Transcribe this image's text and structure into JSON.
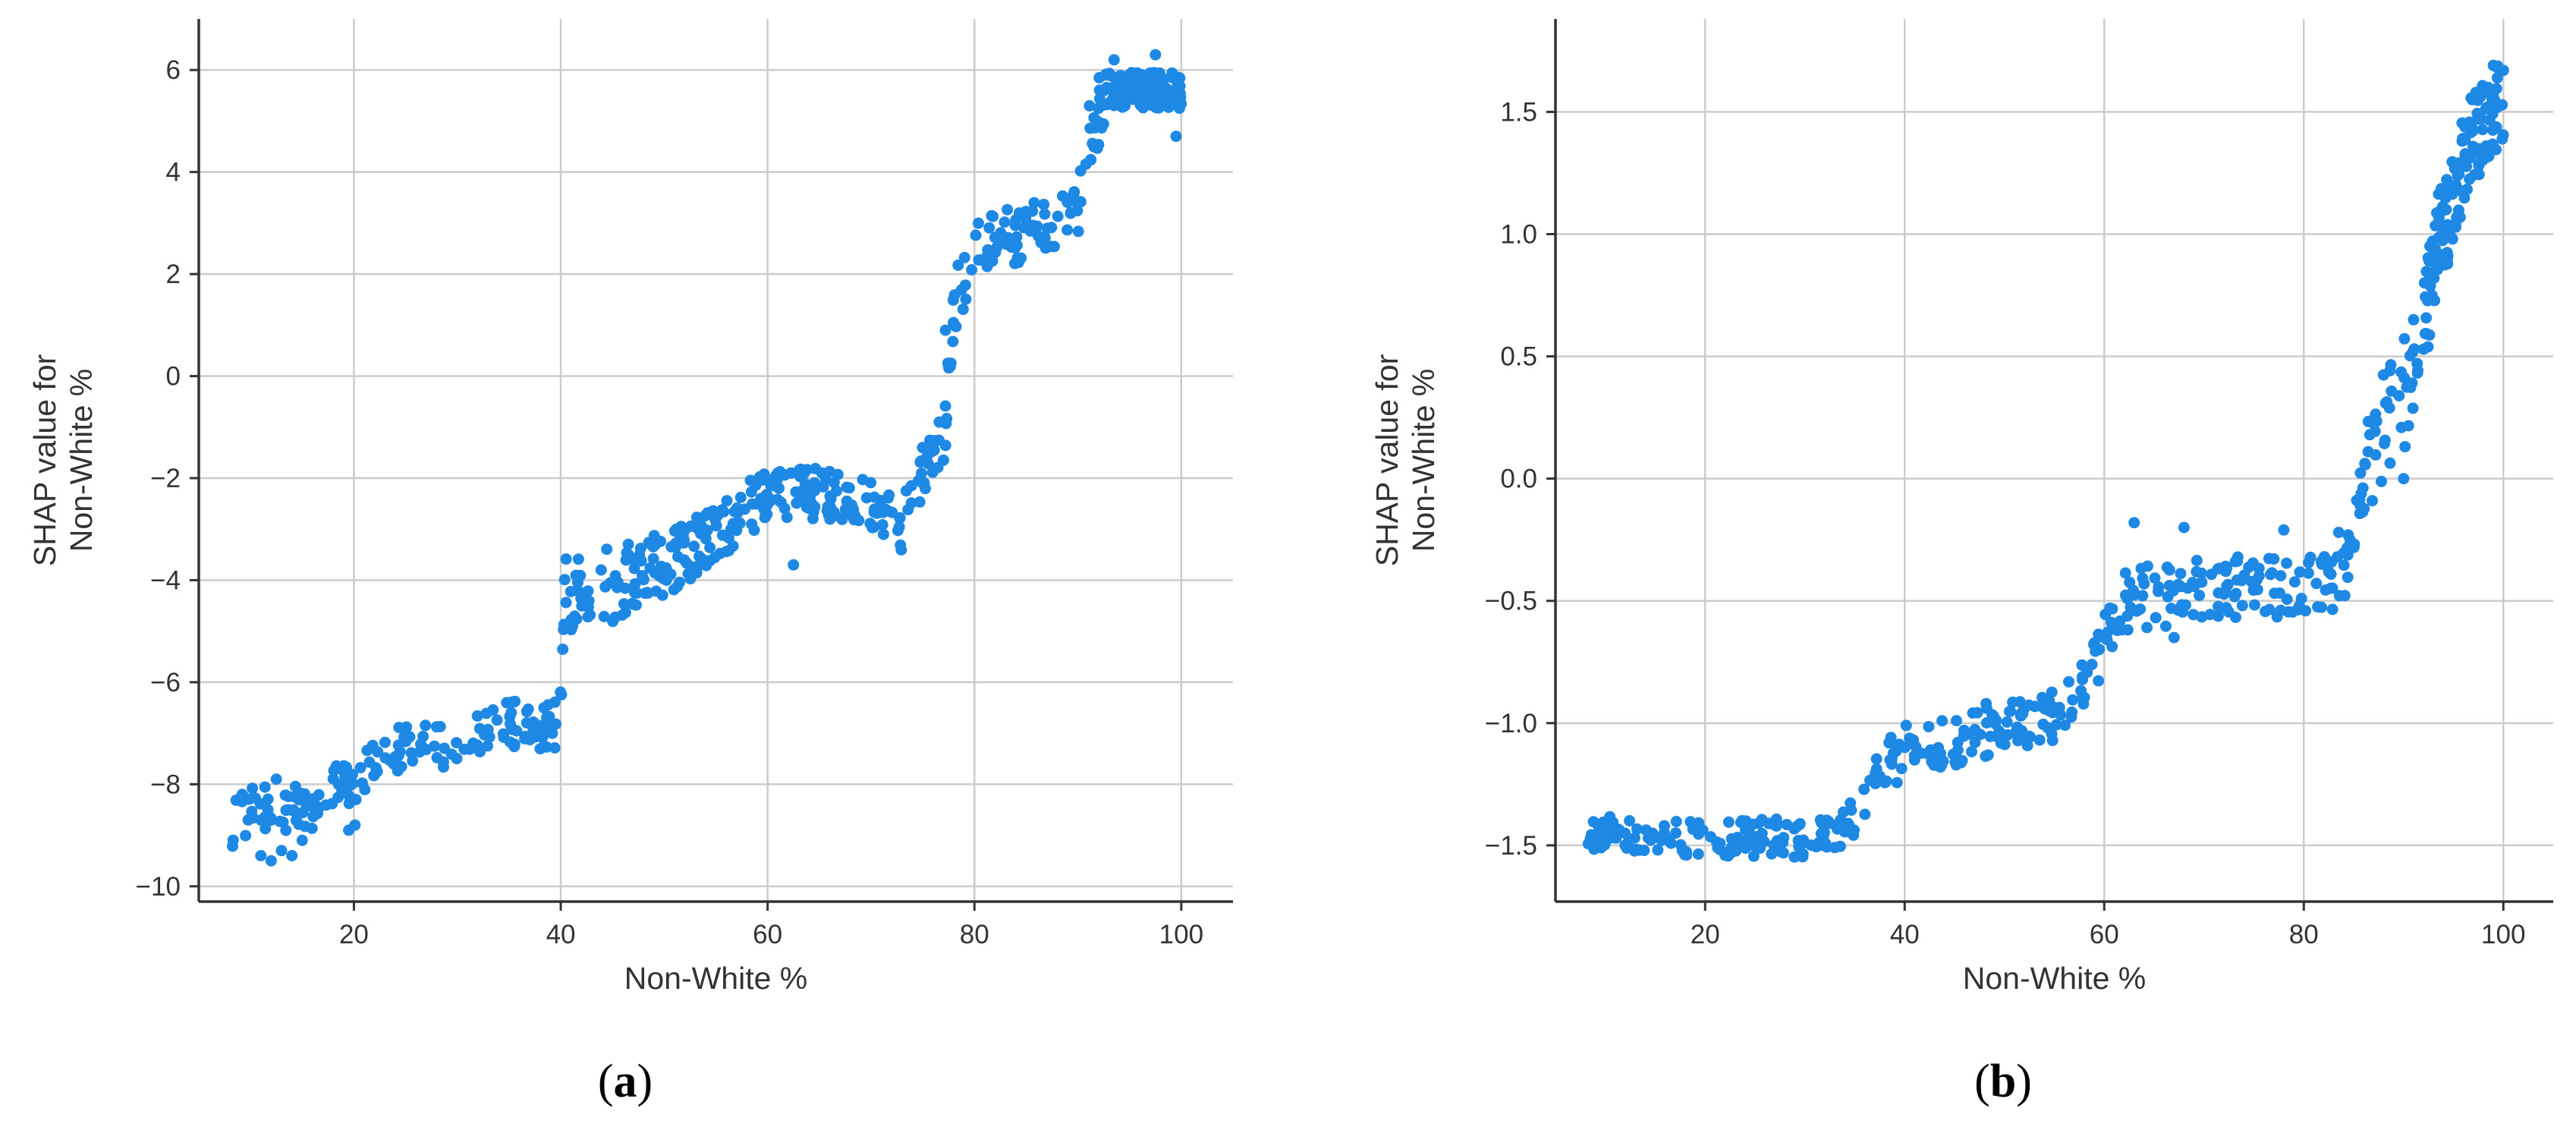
{
  "colors": {
    "points": "#1E88E5",
    "grid": "#CCCCCC",
    "axis": "#333333",
    "text": "#333333"
  },
  "chart_data": [
    {
      "type": "scatter",
      "panel_label": {
        "open": "(",
        "letter": "a",
        "close": ")"
      },
      "xlabel": "Non-White %",
      "ylabel": [
        "SHAP value for",
        "Non-White %"
      ],
      "xlim": [
        5,
        105
      ],
      "ylim": [
        -10.3,
        7.0
      ],
      "xticks": [
        20,
        40,
        60,
        80,
        100
      ],
      "xtick_labels": [
        "20",
        "40",
        "60",
        "80",
        "100"
      ],
      "yticks": [
        6,
        4,
        2,
        0,
        -2,
        -4,
        -6,
        -8,
        -10
      ],
      "ytick_labels": [
        "6",
        "4",
        "2",
        "0",
        "−2",
        "−4",
        "−6",
        "−8",
        "−10"
      ],
      "grid": true,
      "trend": [
        [
          7.0,
          -9.0
        ],
        [
          10.0,
          -8.4
        ],
        [
          15.0,
          -8.5
        ],
        [
          20.0,
          -7.9
        ],
        [
          25.0,
          -7.2
        ],
        [
          30.0,
          -7.3
        ],
        [
          35.0,
          -6.8
        ],
        [
          39.5,
          -6.9
        ],
        [
          40.0,
          -6.0
        ],
        [
          40.5,
          -4.2
        ],
        [
          45.0,
          -4.1
        ],
        [
          50.0,
          -3.7
        ],
        [
          55.0,
          -3.1
        ],
        [
          60.0,
          -2.3
        ],
        [
          65.0,
          -2.3
        ],
        [
          70.0,
          -2.5
        ],
        [
          73.0,
          -3.0
        ],
        [
          74.0,
          -2.2
        ],
        [
          77.0,
          -1.3
        ],
        [
          78.0,
          1.4
        ],
        [
          80.0,
          2.6
        ],
        [
          85.0,
          2.8
        ],
        [
          90.0,
          3.2
        ],
        [
          91.0,
          4.7
        ],
        [
          93.0,
          5.6
        ],
        [
          100.0,
          5.6
        ]
      ],
      "spread": [
        [
          7.0,
          0.55
        ],
        [
          20.0,
          0.45
        ],
        [
          39.0,
          0.45
        ],
        [
          40.5,
          0.8
        ],
        [
          55.0,
          0.55
        ],
        [
          73.0,
          0.45
        ],
        [
          78.0,
          0.7
        ],
        [
          90.0,
          0.45
        ],
        [
          92.0,
          0.7
        ],
        [
          93.0,
          0.35
        ],
        [
          100.0,
          0.35
        ]
      ],
      "points": [
        [
          9.2,
          -8.2
        ],
        [
          11.0,
          -9.4
        ],
        [
          12.0,
          -9.5
        ],
        [
          12.5,
          -7.9
        ],
        [
          13.0,
          -9.3
        ],
        [
          14.0,
          -9.4
        ],
        [
          15.0,
          -9.1
        ],
        [
          19.5,
          -8.9
        ],
        [
          20.1,
          -8.8
        ],
        [
          76.6,
          -0.9
        ],
        [
          77.2,
          0.9
        ],
        [
          93.5,
          6.2
        ],
        [
          97.5,
          6.3
        ],
        [
          99.5,
          4.7
        ],
        [
          62.5,
          -3.7
        ]
      ],
      "n_points": 720,
      "seed": 11
    },
    {
      "type": "scatter",
      "panel_label": {
        "open": "(",
        "letter": "b",
        "close": ")"
      },
      "xlabel": "Non-White %",
      "ylabel": [
        "SHAP value for",
        "Non-White %"
      ],
      "xlim": [
        5,
        105
      ],
      "ylim": [
        -1.73,
        1.88
      ],
      "xticks": [
        20,
        40,
        60,
        80,
        100
      ],
      "xtick_labels": [
        "20",
        "40",
        "60",
        "80",
        "100"
      ],
      "yticks": [
        1.5,
        1.0,
        0.5,
        0.0,
        -0.5,
        -1.0,
        -1.5
      ],
      "ytick_labels": [
        "1.5",
        "1.0",
        "0.5",
        "0.0",
        "−0.5",
        "−1.0",
        "−1.5"
      ],
      "grid": true,
      "trend": [
        [
          10.0,
          -1.45
        ],
        [
          20.0,
          -1.47
        ],
        [
          30.0,
          -1.47
        ],
        [
          34.0,
          -1.44
        ],
        [
          38.0,
          -1.15
        ],
        [
          45.0,
          -1.08
        ],
        [
          50.0,
          -1.0
        ],
        [
          55.0,
          -0.97
        ],
        [
          58.0,
          -0.85
        ],
        [
          62.0,
          -0.5
        ],
        [
          70.0,
          -0.45
        ],
        [
          80.0,
          -0.45
        ],
        [
          84.0,
          -0.4
        ],
        [
          86.0,
          0.0
        ],
        [
          88.0,
          0.25
        ],
        [
          91.0,
          0.4
        ],
        [
          93.0,
          0.9
        ],
        [
          95.0,
          1.15
        ],
        [
          97.0,
          1.4
        ],
        [
          100.0,
          1.55
        ]
      ],
      "spread": [
        [
          10.0,
          0.07
        ],
        [
          34.0,
          0.08
        ],
        [
          40.0,
          0.12
        ],
        [
          58.0,
          0.1
        ],
        [
          62.0,
          0.14
        ],
        [
          84.0,
          0.12
        ],
        [
          88.0,
          0.25
        ],
        [
          93.0,
          0.22
        ],
        [
          100.0,
          0.17
        ]
      ],
      "points": [
        [
          10.5,
          -1.47
        ],
        [
          63.0,
          -0.18
        ],
        [
          68.0,
          -0.2
        ],
        [
          78.0,
          -0.21
        ],
        [
          83.5,
          -0.22
        ],
        [
          90.0,
          0.0
        ],
        [
          91.0,
          0.65
        ],
        [
          99.0,
          1.69
        ],
        [
          100.0,
          1.67
        ],
        [
          67.0,
          -0.65
        ]
      ],
      "n_points": 640,
      "seed": 29
    }
  ]
}
